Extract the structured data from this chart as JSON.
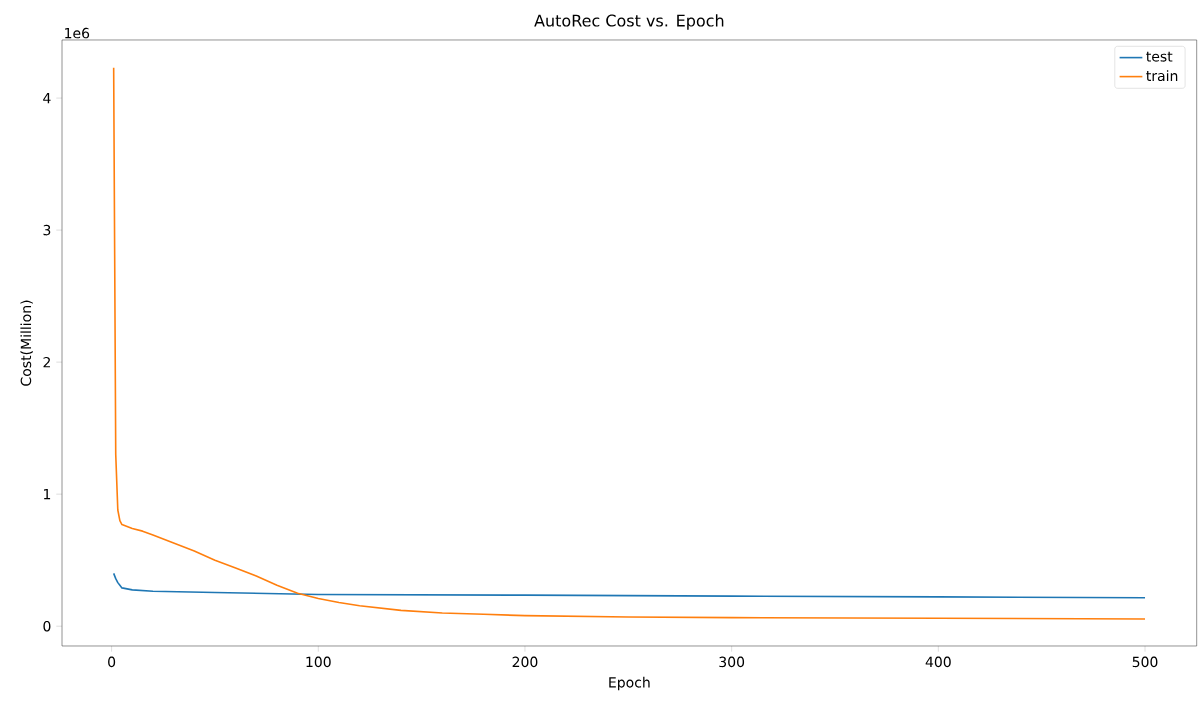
{
  "chart_data": {
    "type": "line",
    "title": "AutoRec Cost vs. Epoch",
    "xlabel": "Epoch",
    "ylabel": "Cost(Million)",
    "annotations": [
      "1e6"
    ],
    "xlim": [
      -24,
      525
    ],
    "ylim": [
      -0.15,
      4.44
    ],
    "xticks": [
      0,
      100,
      200,
      300,
      400,
      500
    ],
    "yticks": [
      0,
      1,
      2,
      3,
      4
    ],
    "legend": "top right",
    "grid": false,
    "marker": "none",
    "line_style": "solid",
    "series": [
      {
        "name": "test",
        "color": "#1f77b4",
        "x": [
          1,
          2,
          3,
          4,
          5,
          10,
          20,
          50,
          100,
          200,
          300,
          400,
          500
        ],
        "values": [
          0.4,
          0.36,
          0.33,
          0.31,
          0.29,
          0.275,
          0.265,
          0.255,
          0.24,
          0.235,
          0.228,
          0.222,
          0.215
        ]
      },
      {
        "name": "train",
        "color": "#ff7f0e",
        "x": [
          1,
          2,
          3,
          4,
          5,
          10,
          15,
          20,
          30,
          40,
          50,
          60,
          70,
          80,
          90,
          100,
          110,
          120,
          140,
          160,
          180,
          200,
          250,
          300,
          400,
          500
        ],
        "values": [
          4.23,
          1.3,
          0.88,
          0.8,
          0.77,
          0.74,
          0.72,
          0.69,
          0.63,
          0.57,
          0.5,
          0.44,
          0.38,
          0.31,
          0.25,
          0.21,
          0.18,
          0.155,
          0.12,
          0.1,
          0.09,
          0.08,
          0.07,
          0.065,
          0.06,
          0.055
        ]
      }
    ]
  }
}
